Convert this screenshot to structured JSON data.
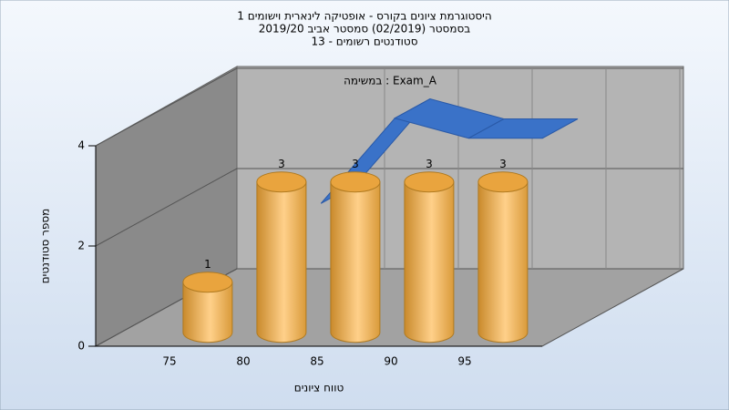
{
  "chart_data": {
    "type": "bar",
    "title": [
      "היסטוגרמת ציונים בקורס - אופטיקה לינארית וישומים 1",
      "בסמסטר  (02/2019)  סמסטר אביב 2019/20",
      "סטודנטים רשומים - 13"
    ],
    "subtitle": "במשימה : Exam_A",
    "x_label": "טווח ציונים",
    "y_label": "מספר סטודנטים",
    "categories": [
      "75",
      "80",
      "85",
      "90",
      "95"
    ],
    "series": [
      {
        "type": "bar",
        "color": "#f0a840",
        "values": [
          1,
          3,
          3,
          3,
          3
        ]
      },
      {
        "type": "line",
        "color": "#3a72c8",
        "values": [
          null,
          2,
          3.7,
          3.3,
          3.3
        ]
      }
    ],
    "ylim": [
      0,
      4
    ],
    "yticks": [
      0,
      2,
      4
    ],
    "grid": true
  }
}
